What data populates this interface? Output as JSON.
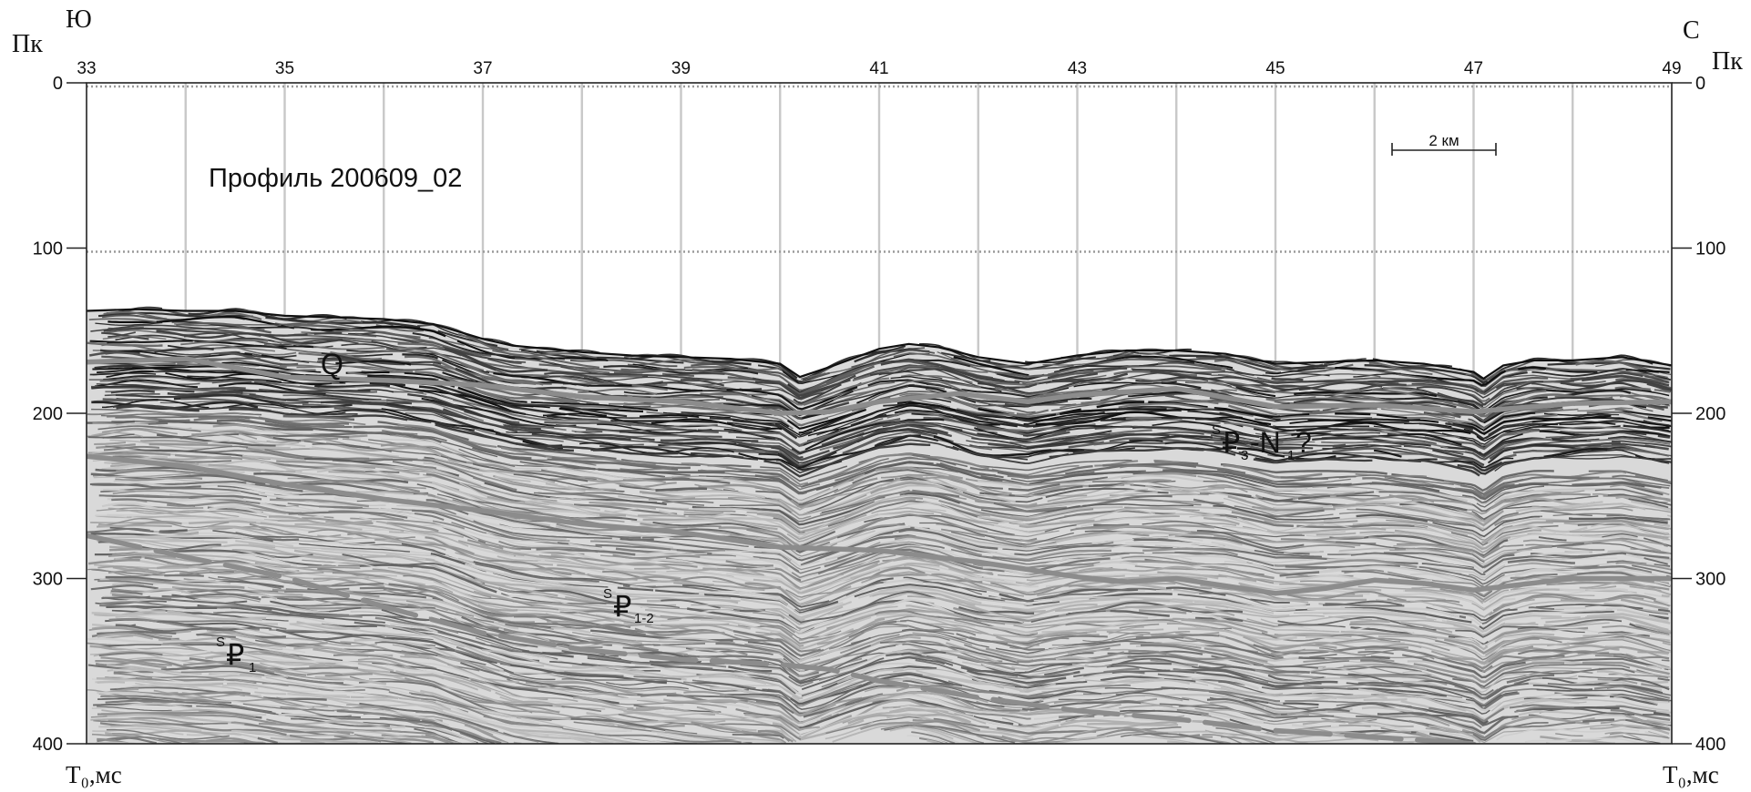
{
  "figure": {
    "corner_labels": {
      "south": "Ю",
      "north": "С",
      "picket_left": "Пк",
      "picket_right": "Пк",
      "time_left": "Т₀,мс",
      "time_right": "Т₀,мс"
    },
    "title": "Профиль 200609_02",
    "scale_bar": {
      "label": "2 км"
    },
    "top_axis": {
      "ticks": [
        33,
        35,
        37,
        39,
        41,
        43,
        45,
        47,
        49
      ],
      "labels": [
        "33",
        "35",
        "37",
        "39",
        "41",
        "43",
        "45",
        "47",
        "49"
      ]
    },
    "left_axis": {
      "ticks": [
        0,
        100,
        200,
        300,
        400
      ],
      "labels": [
        "0",
        "100",
        "200",
        "300",
        "400"
      ]
    },
    "right_axis": {
      "ticks": [
        0,
        100,
        200,
        300,
        400
      ],
      "labels": [
        "0",
        "100",
        "200",
        "300",
        "400"
      ]
    },
    "units": {
      "q": {
        "main": "Q"
      },
      "p3n1": {
        "sup": "S",
        "main1": "₽",
        "sub1": "3",
        "dash": "-N",
        "sub2": "1",
        "tail": "?"
      },
      "p12": {
        "sup": "S",
        "main": "₽",
        "sub": "1-2"
      },
      "p1": {
        "sup": "S",
        "main": "₽",
        "sub": "1"
      }
    },
    "colors": {
      "seismic_dark": "#1e1e1e",
      "seismic_light": "#f2f2f2",
      "horizon": "#8c8c8c",
      "gridline": "#c8c8c8",
      "dotted_line": "#9a9a9a",
      "axis": "#222222"
    }
  }
}
